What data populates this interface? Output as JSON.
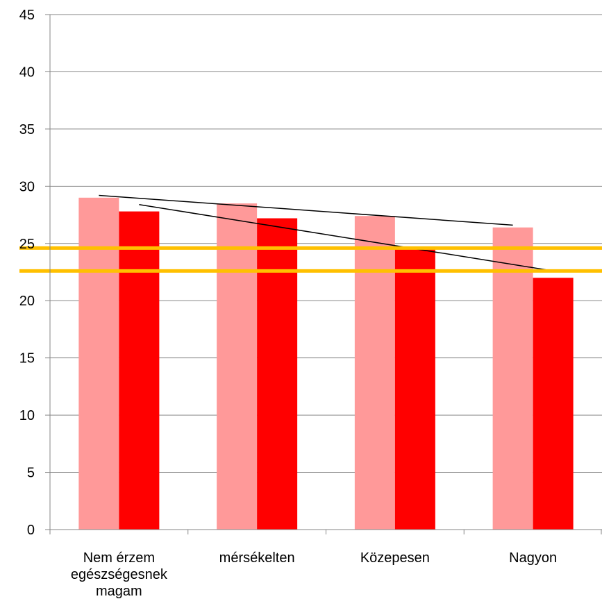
{
  "chart_data": {
    "type": "bar",
    "title": "",
    "xlabel": "",
    "ylabel": "",
    "ylim": [
      0,
      45
    ],
    "yticks": [
      0,
      5,
      10,
      15,
      20,
      25,
      30,
      35,
      40,
      45
    ],
    "grid": true,
    "legend": "none",
    "categories": [
      [
        "Nem érzem",
        "egészségesnek",
        "magam"
      ],
      [
        "mérsékelten"
      ],
      [
        "Közepesen"
      ],
      [
        "Nagyon"
      ]
    ],
    "series": [
      {
        "values": [
          29.0,
          28.5,
          27.4,
          26.4
        ],
        "color": "#ff9999"
      },
      {
        "values": [
          27.8,
          27.2,
          24.5,
          22.0
        ],
        "color": "#ff0000"
      }
    ],
    "trendlines": [
      {
        "series_index": 0,
        "from": 29.2,
        "to": 26.6,
        "color": "#000000"
      },
      {
        "series_index": 1,
        "from": 28.4,
        "to": 22.6,
        "color": "#000000"
      }
    ],
    "reference_lines": [
      {
        "y": 24.6,
        "color": "#ffc000"
      },
      {
        "y": 22.6,
        "color": "#ffc000"
      }
    ]
  }
}
